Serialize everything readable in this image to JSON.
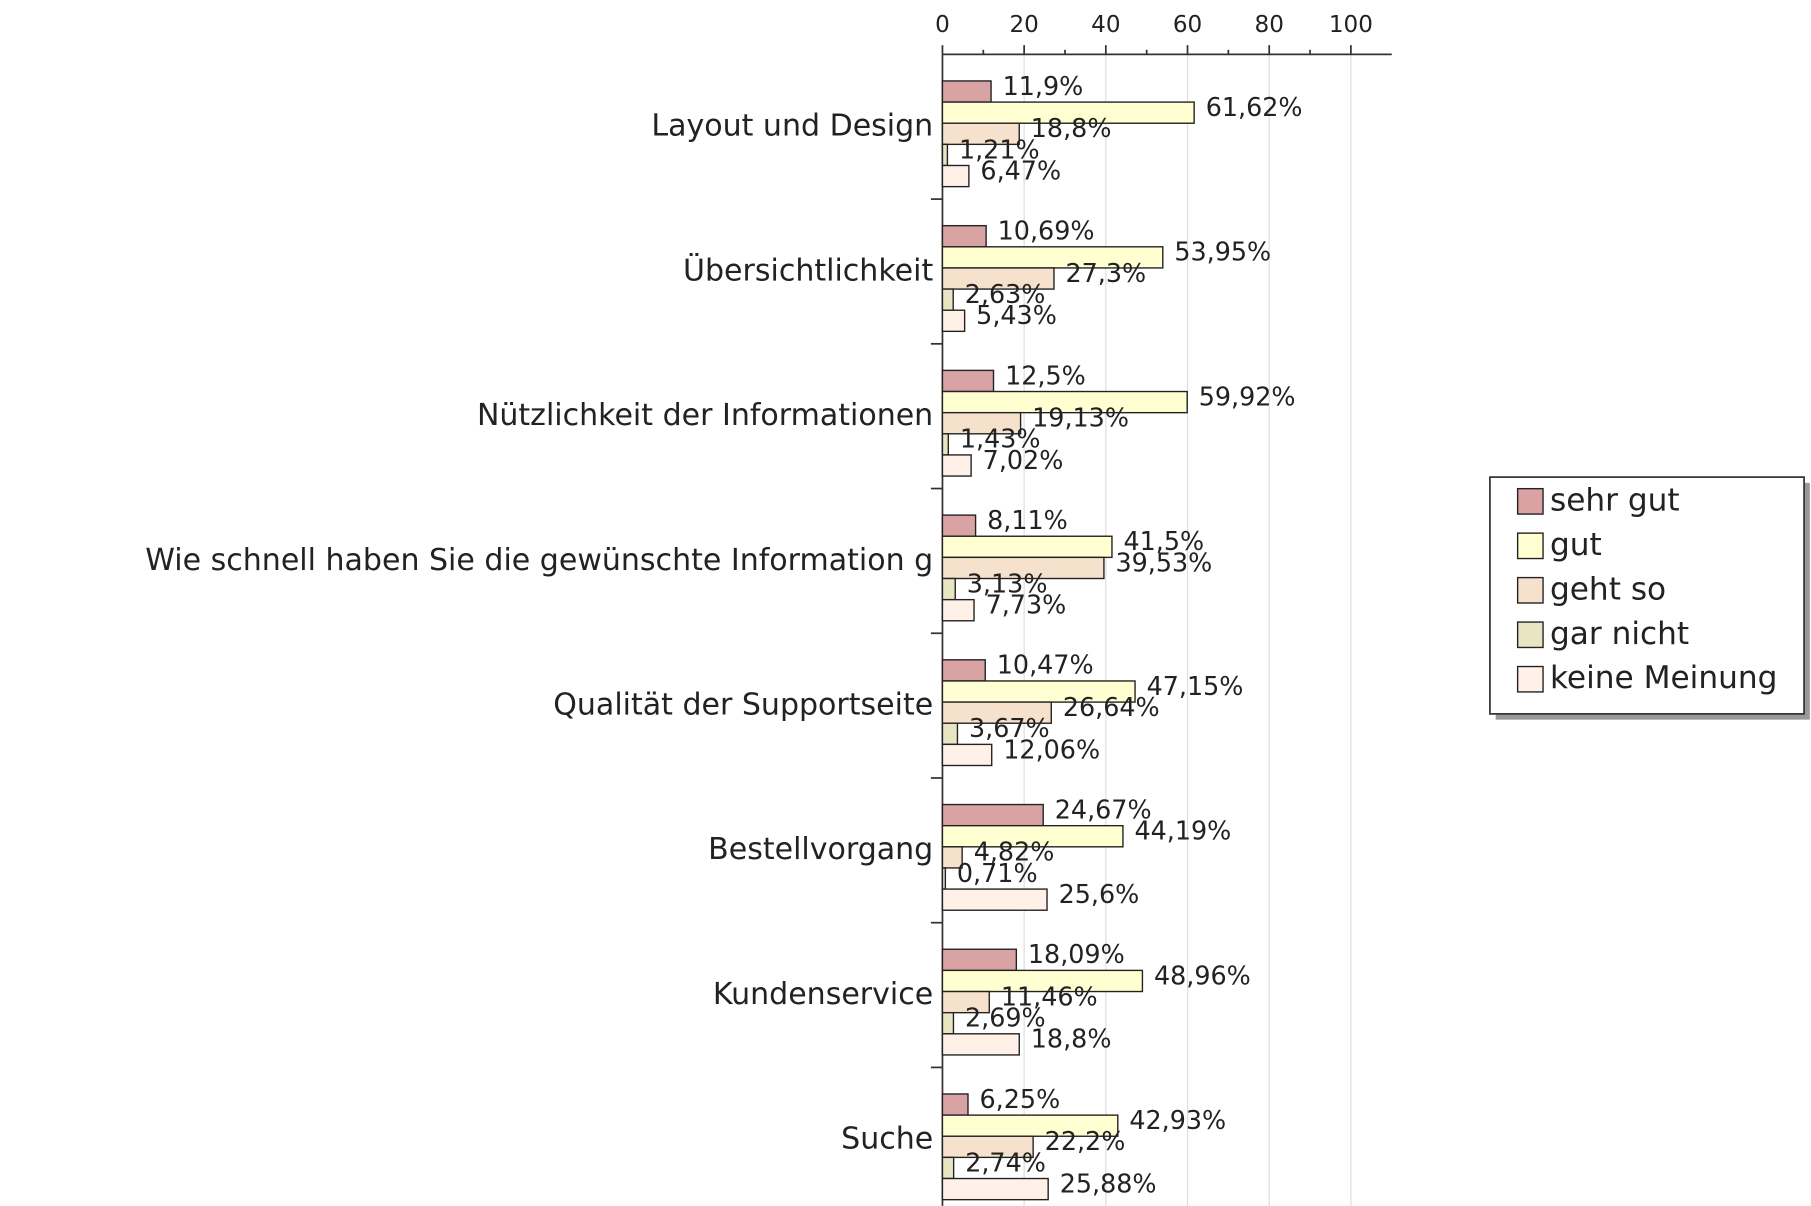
{
  "chart_data": {
    "type": "hbar",
    "categories": [
      "Layout und Design",
      "Übersichtlichkeit",
      "Nützlichkeit der Informationen",
      "Wie schnell haben Sie die gewünschte Information g",
      "Qualität der Supportseite",
      "Bestellvorgang",
      "Kundenservice",
      "Suche"
    ],
    "series": [
      {
        "name": "sehr gut",
        "color": "#d9a3a3",
        "values": [
          11.9,
          10.69,
          12.5,
          8.11,
          10.47,
          24.67,
          18.09,
          6.25
        ],
        "value_labels": [
          "11,9%",
          "10,69%",
          "12,5%",
          "8,11%",
          "10,47%",
          "24,67%",
          "18,09%",
          "6,25%"
        ]
      },
      {
        "name": "gut",
        "color": "#ffffd2",
        "values": [
          61.62,
          53.95,
          59.92,
          41.5,
          47.15,
          44.19,
          48.96,
          42.93
        ],
        "value_labels": [
          "61,62%",
          "53,95%",
          "59,92%",
          "41,5%",
          "47,15%",
          "44,19%",
          "48,96%",
          "42,93%"
        ]
      },
      {
        "name": "geht so",
        "color": "#f6e1cc",
        "values": [
          18.8,
          27.3,
          19.13,
          39.53,
          26.64,
          4.82,
          11.46,
          22.2
        ],
        "value_labels": [
          "18,8%",
          "27,3%",
          "19,13%",
          "39,53%",
          "26,64%",
          "4,82%",
          "11,46%",
          "22,2%"
        ]
      },
      {
        "name": "gar nicht",
        "color": "#e9e5c3",
        "values": [
          1.21,
          2.63,
          1.43,
          3.13,
          3.67,
          0.71,
          2.69,
          2.74
        ],
        "value_labels": [
          "1,21%",
          "2,63%",
          "1,43%",
          "3,13%",
          "3,67%",
          "0,71%",
          "2,69%",
          "2,74%"
        ]
      },
      {
        "name": "keine Meinung",
        "color": "#fff1e8",
        "values": [
          6.47,
          5.43,
          7.02,
          7.73,
          12.06,
          25.6,
          18.8,
          25.88
        ],
        "value_labels": [
          "6,47%",
          "5,43%",
          "7,02%",
          "7,73%",
          "12,06%",
          "25,6%",
          "18,8%",
          "25,88%"
        ]
      }
    ],
    "xlim": [
      0,
      110
    ],
    "xticks": [
      0,
      20,
      40,
      60,
      80,
      100
    ],
    "grid": true,
    "legend": "right"
  }
}
